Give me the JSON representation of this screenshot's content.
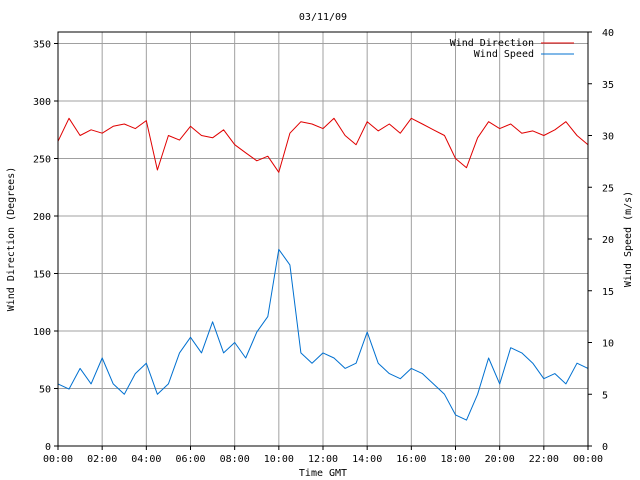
{
  "chart_data": {
    "type": "line",
    "title": "03/11/09",
    "xlabel": "Time GMT",
    "ylabel_left": "Wind Direction (Degrees)",
    "ylabel_right": "Wind Speed (m/s)",
    "x_ticks": [
      "00:00",
      "02:00",
      "04:00",
      "06:00",
      "08:00",
      "10:00",
      "12:00",
      "14:00",
      "16:00",
      "18:00",
      "20:00",
      "22:00",
      "00:00"
    ],
    "x_range_hours": [
      0,
      24
    ],
    "ylim_left": [
      0,
      360
    ],
    "yticks_left": [
      0,
      50,
      100,
      150,
      200,
      250,
      300,
      350
    ],
    "ylim_right": [
      0,
      40
    ],
    "yticks_right": [
      0,
      5,
      10,
      15,
      20,
      25,
      30,
      35,
      40
    ],
    "grid": true,
    "legend_position": "top-right",
    "series": [
      {
        "name": "Wind Direction",
        "axis": "left",
        "color": "#e00000",
        "x": [
          0,
          0.5,
          1,
          1.5,
          2,
          2.5,
          3,
          3.5,
          4,
          4.5,
          5,
          5.5,
          6,
          6.5,
          7,
          7.5,
          8,
          8.5,
          9,
          9.5,
          10,
          10.5,
          11,
          11.5,
          12,
          12.5,
          13,
          13.5,
          14,
          14.5,
          15,
          15.5,
          16,
          16.5,
          17,
          17.5,
          18,
          18.5,
          19,
          19.5,
          20,
          20.5,
          21,
          21.5,
          22,
          22.5,
          23,
          23.5,
          24
        ],
        "values": [
          265,
          285,
          270,
          275,
          272,
          278,
          280,
          276,
          283,
          240,
          270,
          266,
          278,
          270,
          268,
          275,
          262,
          255,
          248,
          252,
          238,
          272,
          282,
          280,
          276,
          285,
          270,
          262,
          282,
          274,
          280,
          272,
          285,
          280,
          275,
          270,
          250,
          242,
          268,
          282,
          276,
          280,
          272,
          274,
          270,
          275,
          282,
          270,
          262
        ]
      },
      {
        "name": "Wind Speed",
        "axis": "right",
        "color": "#0070d0",
        "x": [
          0,
          0.5,
          1,
          1.5,
          2,
          2.5,
          3,
          3.5,
          4,
          4.5,
          5,
          5.5,
          6,
          6.5,
          7,
          7.5,
          8,
          8.5,
          9,
          9.5,
          10,
          10.5,
          11,
          11.5,
          12,
          12.5,
          13,
          13.5,
          14,
          14.5,
          15,
          15.5,
          16,
          16.5,
          17,
          17.5,
          18,
          18.5,
          19,
          19.5,
          20,
          20.5,
          21,
          21.5,
          22,
          22.5,
          23,
          23.5,
          24
        ],
        "values": [
          6,
          5.5,
          7.5,
          6,
          8.5,
          6,
          5,
          7,
          8,
          5,
          6,
          9,
          10.5,
          9,
          12,
          9,
          10,
          8.5,
          11,
          12.5,
          19,
          17.5,
          9,
          8,
          9,
          8.5,
          7.5,
          8,
          11,
          8,
          7,
          6.5,
          7.5,
          7,
          6,
          5,
          3,
          2.5,
          5,
          8.5,
          6,
          9.5,
          9,
          8,
          6.5,
          7,
          6,
          8,
          7.5
        ]
      }
    ]
  }
}
